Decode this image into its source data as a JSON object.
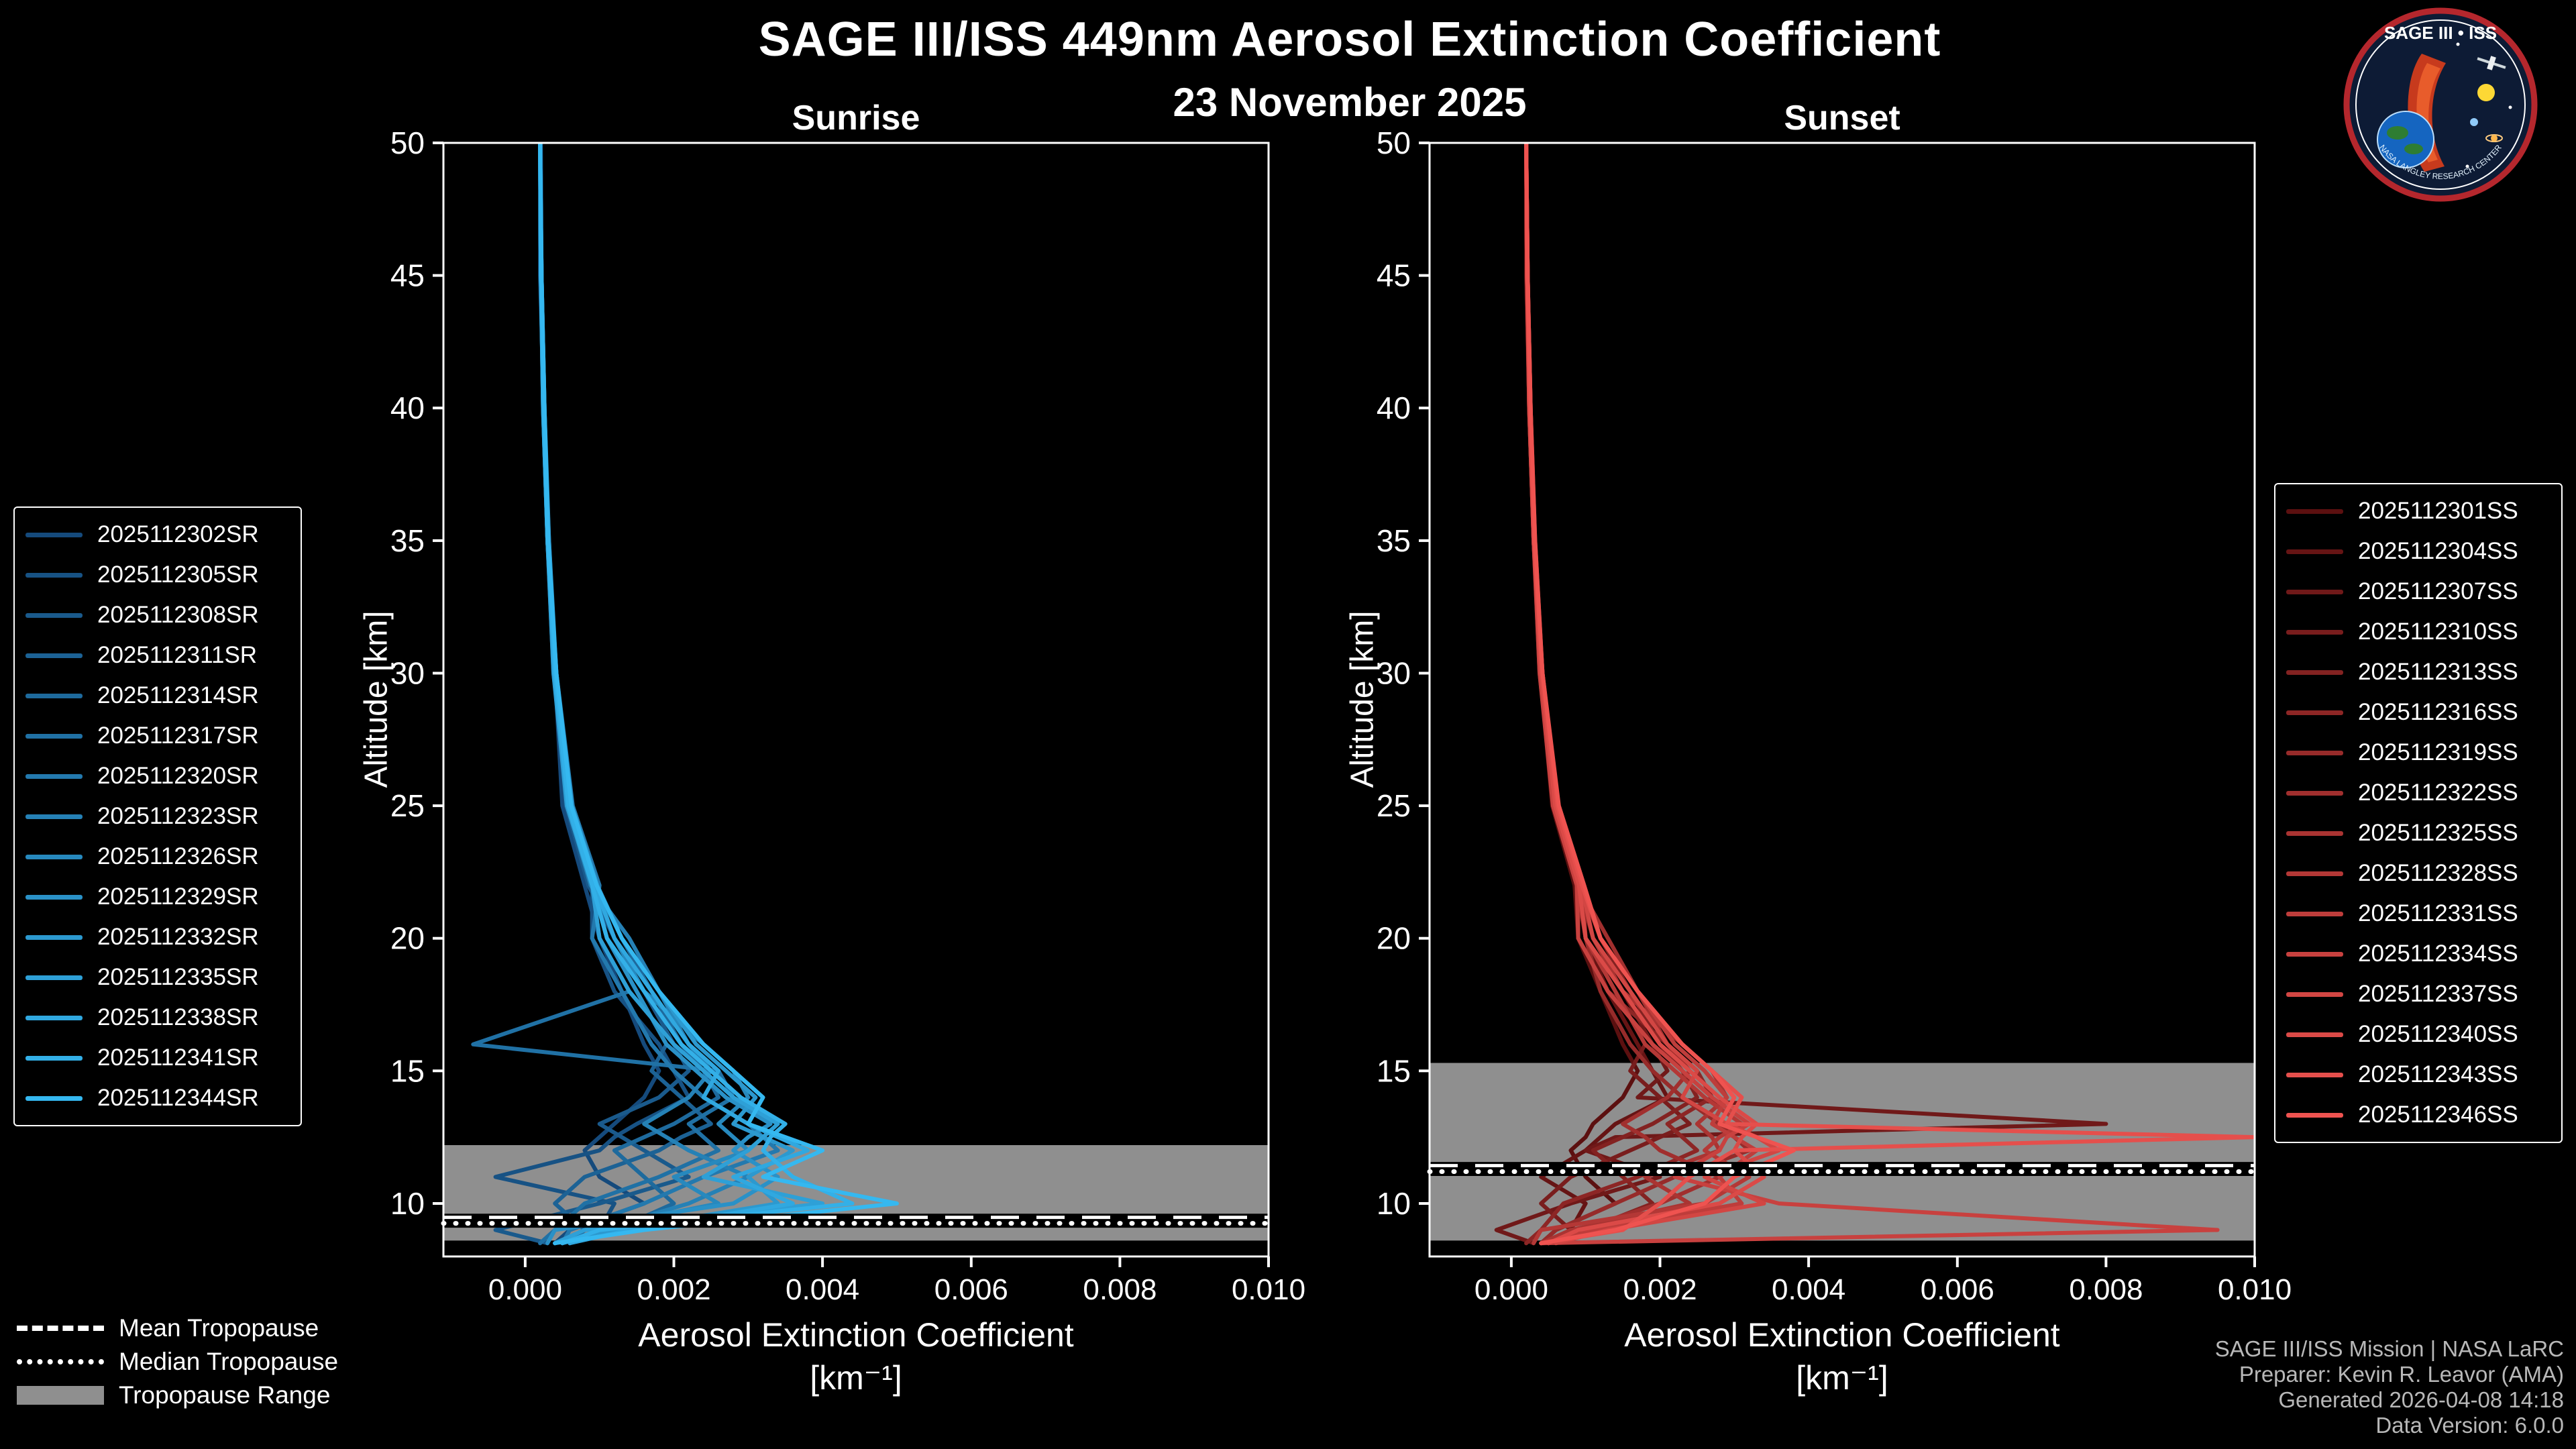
{
  "header": {
    "title": "SAGE III/ISS 449nm Aerosol Extinction Coefficient",
    "date": "23 November 2025"
  },
  "logo": {
    "title": "SAGE III • ISS",
    "subtitle": "NASA LANGLEY RESEARCH CENTER"
  },
  "footer": {
    "lines": [
      "SAGE III/ISS Mission | NASA LaRC",
      "Preparer: Kevin R. Leavor (AMA)",
      "Generated 2026-04-08 14:18",
      "Data Version: 6.0.0"
    ]
  },
  "tropopause_legend": [
    {
      "label": "Mean Tropopause",
      "style": "dashed"
    },
    {
      "label": "Median Tropopause",
      "style": "dotted"
    },
    {
      "label": "Tropopause Range",
      "style": "band"
    }
  ],
  "band_color": "#8f8f8f",
  "chart_data": [
    {
      "type": "line",
      "title": "Sunrise",
      "xlabel": "Aerosol Extinction Coefficient",
      "xlabel_units": "[km⁻¹]",
      "ylabel": "Altitude [km]",
      "xlim": [
        -0.0011,
        0.01
      ],
      "ylim": [
        8,
        50
      ],
      "grid": false,
      "legend_position": "outside-left",
      "band_color": "#8f8f8f",
      "xticks": {
        "values": [
          0,
          0.002,
          0.004,
          0.006,
          0.008,
          0.01
        ],
        "labels": [
          "0.000",
          "0.002",
          "0.004",
          "0.006",
          "0.008",
          "0.010"
        ]
      },
      "yticks": {
        "values": [
          10,
          15,
          20,
          25,
          30,
          35,
          40,
          45,
          50
        ],
        "labels": [
          "10",
          "15",
          "20",
          "25",
          "30",
          "35",
          "40",
          "45",
          "50"
        ]
      },
      "tropopause": {
        "mean": 9.45,
        "median": 9.25,
        "range": [
          8.6,
          12.2
        ]
      },
      "altitudes": [
        50,
        45,
        40,
        35,
        30,
        25,
        22,
        20,
        18,
        16,
        15,
        14,
        13,
        12.5,
        12,
        11,
        10,
        9,
        8.5
      ],
      "series": [
        {
          "name": "2025112302SR",
          "color": "#154a7c",
          "values": [
            0.0002,
            0.0002,
            0.00025,
            0.0003,
            0.0004,
            0.0005,
            0.0008,
            0.001,
            0.0013,
            0.0016,
            0.0018,
            0.0016,
            0.0012,
            0.001,
            0.0008,
            0.001,
            0.0016,
            0.0006,
            0.0004
          ]
        },
        {
          "name": "2025112305SR",
          "color": "#175284",
          "values": [
            0.0002,
            0.00022,
            0.00024,
            0.0003,
            0.00042,
            0.0006,
            0.0009,
            0.0009,
            0.0012,
            0.0018,
            0.002,
            0.0022,
            0.0015,
            0.0012,
            0.001,
            -0.0004,
            0.0012,
            0.001,
            0.0005
          ]
        },
        {
          "name": "2025112308SR",
          "color": "#1a5a8c",
          "values": [
            0.00021,
            0.00022,
            0.00026,
            0.00031,
            0.0004,
            0.00055,
            0.00085,
            0.0012,
            0.0016,
            0.002,
            0.0022,
            0.0018,
            0.001,
            0.0013,
            0.0016,
            0.0022,
            0.001,
            -0.0004,
            0.0003
          ]
        },
        {
          "name": "2025112311SR",
          "color": "#1c6295",
          "values": [
            0.0002,
            0.00021,
            0.00025,
            0.0003,
            0.00038,
            0.00058,
            0.00092,
            0.0011,
            0.0015,
            0.0019,
            0.0017,
            0.0021,
            0.0025,
            0.0021,
            0.0018,
            0.0008,
            0.0004,
            0.0008,
            0.0006
          ]
        },
        {
          "name": "2025112314SR",
          "color": "#1e6a9d",
          "values": [
            0.0002,
            0.00022,
            0.00025,
            0.00032,
            0.00041,
            0.00062,
            0.00095,
            0.0013,
            0.0017,
            0.0021,
            0.0024,
            0.0026,
            0.002,
            0.0016,
            0.0012,
            0.0016,
            0.002,
            0.0012,
            0.0004
          ]
        },
        {
          "name": "2025112317SR",
          "color": "#2071a5",
          "values": [
            0.0002,
            0.00021,
            0.00024,
            0.0003,
            0.0004,
            0.0006,
            0.0009,
            0.001,
            0.0014,
            -0.0007,
            0.0026,
            0.0028,
            0.0022,
            0.0024,
            0.0026,
            0.0018,
            0.0008,
            0.0004,
            0.0002
          ]
        },
        {
          "name": "2025112320SR",
          "color": "#2379ae",
          "values": [
            0.0002,
            0.00022,
            0.00026,
            0.00031,
            0.00042,
            0.00064,
            0.001,
            0.0009,
            0.0013,
            0.0017,
            0.002,
            0.0024,
            0.003,
            0.0032,
            0.0034,
            0.0024,
            0.0016,
            0.0006,
            0.0005
          ]
        },
        {
          "name": "2025112323SR",
          "color": "#2581b6",
          "values": [
            0.0002,
            0.00021,
            0.00025,
            0.0003,
            0.00039,
            0.00057,
            0.00088,
            0.0014,
            0.0018,
            0.0022,
            0.0025,
            0.0022,
            0.0016,
            0.0019,
            0.0022,
            0.003,
            0.0022,
            0.001,
            0.0006
          ]
        },
        {
          "name": "2025112326SR",
          "color": "#2789be",
          "values": [
            0.0002,
            0.00022,
            0.00025,
            0.00031,
            0.00041,
            0.00061,
            0.00094,
            0.0012,
            0.0016,
            0.0024,
            0.0028,
            0.003,
            0.0026,
            0.0028,
            0.003,
            0.002,
            0.0026,
            0.0008,
            0.0004
          ]
        },
        {
          "name": "2025112329SR",
          "color": "#2a91c7",
          "values": [
            0.0002,
            0.00021,
            0.00024,
            0.0003,
            0.0004,
            0.00059,
            0.00091,
            0.0011,
            0.0015,
            0.0019,
            0.0023,
            0.0027,
            0.0033,
            0.003,
            0.0028,
            0.0034,
            0.0028,
            0.0004,
            0.0003
          ]
        },
        {
          "name": "2025112332SR",
          "color": "#2c99cf",
          "values": [
            0.0002,
            0.00022,
            0.00026,
            0.00032,
            0.00042,
            0.00063,
            0.00097,
            0.0013,
            0.0018,
            0.0023,
            0.0027,
            0.0031,
            0.0028,
            0.0032,
            0.0036,
            0.003,
            0.0034,
            0.0012,
            0.0005
          ]
        },
        {
          "name": "2025112335SR",
          "color": "#2ea0d7",
          "values": [
            0.0002,
            0.00021,
            0.00025,
            0.0003,
            0.00038,
            0.00056,
            0.0009,
            0.001,
            0.0014,
            0.002,
            0.0024,
            0.0028,
            0.0034,
            0.0032,
            0.003,
            0.0024,
            0.004,
            0.0008,
            0.0004
          ]
        },
        {
          "name": "2025112338SR",
          "color": "#30a8e0",
          "values": [
            0.0002,
            0.00022,
            0.00025,
            0.00031,
            0.00041,
            0.0006,
            0.00093,
            0.0012,
            0.0017,
            0.0022,
            0.0026,
            0.0024,
            0.003,
            0.0034,
            0.0038,
            0.0028,
            0.0036,
            0.0014,
            0.0006
          ]
        },
        {
          "name": "2025112341SR",
          "color": "#33b0e8",
          "values": [
            0.0002,
            0.00021,
            0.00024,
            0.0003,
            0.0004,
            0.00058,
            0.0009,
            0.0011,
            0.0016,
            0.0021,
            0.0025,
            0.0029,
            0.0035,
            0.0033,
            0.0032,
            0.0036,
            0.0044,
            0.001,
            0.0005
          ]
        },
        {
          "name": "2025112344SR",
          "color": "#35b8f0",
          "values": [
            0.0002,
            0.00022,
            0.00026,
            0.00031,
            0.00042,
            0.00062,
            0.00096,
            0.0013,
            0.0018,
            0.0024,
            0.0028,
            0.0032,
            0.003,
            0.0035,
            0.004,
            0.0032,
            0.005,
            0.0016,
            0.0004
          ]
        }
      ]
    },
    {
      "type": "line",
      "title": "Sunset",
      "xlabel": "Aerosol Extinction Coefficient",
      "xlabel_units": "[km⁻¹]",
      "ylabel": "Altitude [km]",
      "xlim": [
        -0.0011,
        0.01
      ],
      "ylim": [
        8,
        50
      ],
      "grid": false,
      "legend_position": "outside-right",
      "band_color": "#8f8f8f",
      "xticks": {
        "values": [
          0,
          0.002,
          0.004,
          0.006,
          0.008,
          0.01
        ],
        "labels": [
          "0.000",
          "0.002",
          "0.004",
          "0.006",
          "0.008",
          "0.010"
        ]
      },
      "yticks": {
        "values": [
          10,
          15,
          20,
          25,
          30,
          35,
          40,
          45,
          50
        ],
        "labels": [
          "10",
          "15",
          "20",
          "25",
          "30",
          "35",
          "40",
          "45",
          "50"
        ]
      },
      "tropopause": {
        "mean": 11.4,
        "median": 11.2,
        "range": [
          8.6,
          15.3
        ]
      },
      "altitudes": [
        50,
        45,
        40,
        35,
        30,
        25,
        22,
        20,
        18,
        16,
        15,
        14,
        13,
        12.5,
        12,
        11,
        10,
        9,
        8.5
      ],
      "series": [
        {
          "name": "2025112301SS",
          "color": "#5c1010",
          "values": [
            0.0002,
            0.0002,
            0.00024,
            0.0003,
            0.00039,
            0.00055,
            0.00085,
            0.0009,
            0.0012,
            0.0015,
            0.0017,
            0.0015,
            0.0011,
            0.001,
            0.0008,
            0.001,
            0.0014,
            0.0006,
            0.0004
          ]
        },
        {
          "name": "2025112304SS",
          "color": "#661414",
          "values": [
            0.0002,
            0.00021,
            0.00025,
            0.0003,
            0.0004,
            0.0006,
            0.0009,
            0.001,
            0.0013,
            0.0017,
            0.0019,
            0.0021,
            0.0014,
            0.0012,
            0.001,
            0.0004,
            0.001,
            0.0008,
            0.0005
          ]
        },
        {
          "name": "2025112307SS",
          "color": "#701919",
          "values": [
            0.0002,
            0.00022,
            0.00025,
            0.00031,
            0.0004,
            0.00058,
            0.0009,
            0.0011,
            0.0015,
            0.0019,
            0.0021,
            0.0017,
            0.008,
            0.0014,
            0.001,
            0.002,
            0.0008,
            -0.0002,
            0.0003
          ]
        },
        {
          "name": "2025112310SS",
          "color": "#791d1d",
          "values": [
            0.0002,
            0.00021,
            0.00024,
            0.0003,
            0.00038,
            0.00057,
            0.00088,
            0.001,
            0.0014,
            0.0018,
            0.0016,
            0.002,
            0.0024,
            0.002,
            0.0016,
            0.0008,
            0.0004,
            0.0008,
            0.0005
          ]
        },
        {
          "name": "2025112313SS",
          "color": "#832221",
          "values": [
            0.0002,
            0.00022,
            0.00025,
            0.00031,
            0.00041,
            0.00061,
            0.00093,
            0.0012,
            0.0016,
            0.002,
            0.0023,
            0.0025,
            0.0019,
            0.0015,
            0.0011,
            0.0015,
            0.0019,
            0.001,
            0.0004
          ]
        },
        {
          "name": "2025112316SS",
          "color": "#8d2625",
          "values": [
            0.0002,
            0.00021,
            0.00024,
            0.0003,
            0.0004,
            0.00059,
            0.0009,
            0.0009,
            0.0013,
            0.0021,
            0.0025,
            0.0027,
            0.0021,
            0.0023,
            0.0025,
            0.0017,
            0.0007,
            0.0004,
            0.0002
          ]
        },
        {
          "name": "2025112319SS",
          "color": "#972b2a",
          "values": [
            0.0002,
            0.00022,
            0.00026,
            0.00031,
            0.00042,
            0.00062,
            0.00095,
            0.001,
            0.0012,
            0.0016,
            0.0019,
            0.0023,
            0.0028,
            0.003,
            0.0032,
            0.0022,
            0.0014,
            0.0006,
            0.0004
          ]
        },
        {
          "name": "2025112322SS",
          "color": "#a12f2e",
          "values": [
            0.0002,
            0.00021,
            0.00025,
            0.0003,
            0.00039,
            0.00058,
            0.0009,
            0.0013,
            0.0017,
            0.0021,
            0.0024,
            0.0021,
            0.0015,
            0.0018,
            0.002,
            0.0028,
            0.002,
            0.0009,
            0.0005
          ]
        },
        {
          "name": "2025112325SS",
          "color": "#aa3432",
          "values": [
            0.0002,
            0.00022,
            0.00025,
            0.00031,
            0.00041,
            0.0006,
            0.00092,
            0.0011,
            0.0015,
            0.0023,
            0.0027,
            0.0029,
            0.0025,
            0.0027,
            0.0028,
            0.0018,
            0.0024,
            0.0008,
            0.0004
          ]
        },
        {
          "name": "2025112328SS",
          "color": "#b43836",
          "values": [
            0.0002,
            0.00021,
            0.00024,
            0.0003,
            0.0004,
            0.00057,
            0.00089,
            0.001,
            0.0014,
            0.0018,
            0.0022,
            0.0026,
            0.0031,
            0.0028,
            0.0026,
            0.0032,
            0.0026,
            0.0004,
            0.0003
          ]
        },
        {
          "name": "2025112331SS",
          "color": "#be3d3b",
          "values": [
            0.0002,
            0.00022,
            0.00026,
            0.00032,
            0.00042,
            0.00063,
            0.00096,
            0.0012,
            0.0017,
            0.0022,
            0.0026,
            0.0029,
            0.0027,
            0.003,
            0.0033,
            0.0028,
            0.0031,
            0.0011,
            0.0005
          ]
        },
        {
          "name": "2025112334SS",
          "color": "#c8413f",
          "values": [
            0.0002,
            0.00021,
            0.00025,
            0.0003,
            0.00038,
            0.00056,
            0.00088,
            0.0009,
            0.0013,
            0.0019,
            0.0023,
            0.0027,
            0.0032,
            0.0029,
            0.0028,
            0.0022,
            0.0036,
            0.0095,
            0.0004
          ]
        },
        {
          "name": "2025112337SS",
          "color": "#d24643",
          "values": [
            0.0002,
            0.00022,
            0.00025,
            0.00031,
            0.00041,
            0.00061,
            0.00094,
            0.0011,
            0.0016,
            0.0021,
            0.0025,
            0.0023,
            0.0029,
            0.0033,
            0.0036,
            0.0026,
            0.0034,
            0.0013,
            0.0006
          ]
        },
        {
          "name": "2025112340SS",
          "color": "#db4a47",
          "values": [
            0.0002,
            0.00021,
            0.00024,
            0.0003,
            0.0004,
            0.00059,
            0.00091,
            0.001,
            0.0015,
            0.002,
            0.0024,
            0.0028,
            0.0033,
            0.0031,
            0.003,
            0.0034,
            0.0028,
            0.0009,
            0.0005
          ]
        },
        {
          "name": "2025112343SS",
          "color": "#e54f4c",
          "values": [
            0.0002,
            0.00022,
            0.00026,
            0.00031,
            0.00042,
            0.00062,
            0.00095,
            0.0012,
            0.0017,
            0.0023,
            0.0027,
            0.0031,
            0.0029,
            0.01,
            0.003,
            0.0024,
            0.002,
            0.0015,
            0.0004
          ]
        },
        {
          "name": "2025112346SS",
          "color": "#ef5350",
          "values": [
            0.0002,
            0.00022,
            0.00026,
            0.00032,
            0.00042,
            0.00064,
            0.00098,
            0.0012,
            0.0017,
            0.0023,
            0.0027,
            0.003,
            0.0028,
            0.0033,
            0.0038,
            0.003,
            0.0026,
            0.0014,
            0.0004
          ]
        }
      ]
    }
  ]
}
